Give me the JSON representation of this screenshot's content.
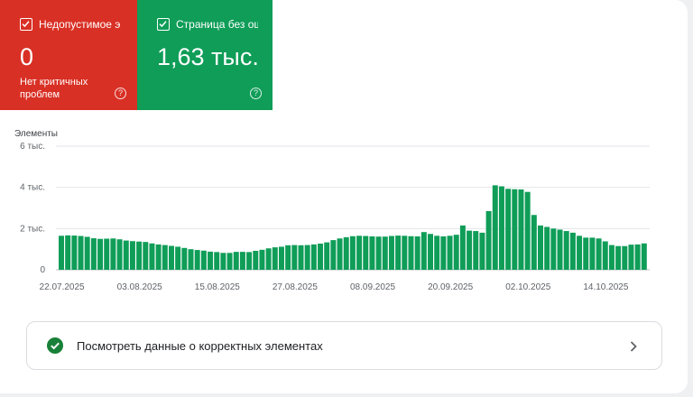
{
  "tiles": {
    "invalid": {
      "title": "Недопустимое э...",
      "value": "0",
      "subtitle": "Нет критичных проблем",
      "color": "#d93025",
      "help_icon": "help-circle-icon"
    },
    "valid": {
      "title": "Страница без ош...",
      "value": "1,63 тыс.",
      "color": "#0f9d58",
      "help_icon": "help-circle-icon"
    }
  },
  "chart_data": {
    "type": "bar",
    "ylabel": "Элементы",
    "ylim": [
      0,
      6000
    ],
    "yticks": [
      "0",
      "2 тыс.",
      "4 тыс.",
      "6 тыс."
    ],
    "ytick_values": [
      0,
      2000,
      4000,
      6000
    ],
    "xticks": [
      "22.07.2025",
      "03.08.2025",
      "15.08.2025",
      "27.08.2025",
      "08.09.2025",
      "20.09.2025",
      "02.10.2025",
      "14.10.2025"
    ],
    "start_date": "22.07.2025",
    "color": "#0f9d58",
    "grid": true,
    "values": [
      1650,
      1670,
      1660,
      1640,
      1600,
      1530,
      1500,
      1510,
      1520,
      1480,
      1420,
      1390,
      1370,
      1350,
      1280,
      1230,
      1200,
      1160,
      1120,
      1060,
      1000,
      960,
      930,
      880,
      860,
      820,
      820,
      870,
      870,
      860,
      920,
      970,
      1040,
      1090,
      1120,
      1190,
      1200,
      1190,
      1200,
      1230,
      1270,
      1330,
      1440,
      1520,
      1580,
      1630,
      1650,
      1640,
      1620,
      1610,
      1610,
      1640,
      1660,
      1650,
      1630,
      1620,
      1830,
      1740,
      1650,
      1620,
      1650,
      1700,
      2150,
      1900,
      1880,
      1800,
      2850,
      4100,
      4050,
      3930,
      3910,
      3900,
      3780,
      2660,
      2150,
      2080,
      2000,
      1950,
      1880,
      1800,
      1650,
      1560,
      1560,
      1520,
      1380,
      1200,
      1150,
      1150,
      1220,
      1230,
      1280
    ]
  },
  "footer_row": {
    "label": "Посмотреть данные о корректных элементах",
    "status_icon": "check-circle-icon",
    "chevron_icon": "chevron-right-icon",
    "status_color": "#188038"
  }
}
